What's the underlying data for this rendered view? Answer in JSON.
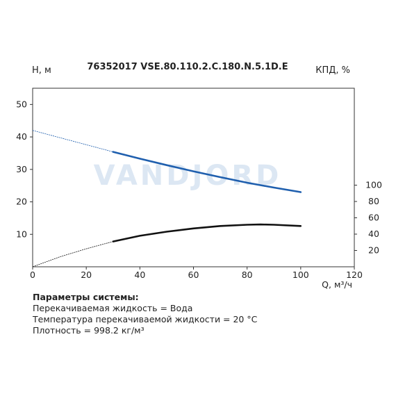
{
  "chart_data": {
    "type": "line",
    "title": "76352017 VSE.80.110.2.C.180.N.5.1D.E",
    "ylabel_left": "H, м",
    "ylabel_right": "КПД, %",
    "xlabel": "Q, м³/ч",
    "watermark": "VANDJORD",
    "xlim": [
      0,
      120
    ],
    "ylim_left": [
      0,
      55
    ],
    "xticks": [
      0,
      20,
      40,
      60,
      80,
      100,
      120
    ],
    "yticks_left": [
      10,
      20,
      30,
      40,
      50
    ],
    "yticks_right": [
      20,
      40,
      60,
      80,
      100
    ],
    "grid": false,
    "series": [
      {
        "key": "head",
        "axis": "left",
        "color": "#1f5fae",
        "x": [
          0,
          10,
          20,
          30,
          40,
          50,
          60,
          70,
          80,
          90,
          100
        ],
        "y": [
          42.0,
          39.8,
          37.6,
          35.4,
          33.3,
          31.3,
          29.4,
          27.6,
          25.9,
          24.4,
          23.0
        ]
      },
      {
        "key": "efficiency",
        "axis": "right",
        "color": "#111111",
        "x": [
          0,
          10,
          20,
          30,
          40,
          50,
          60,
          70,
          80,
          85,
          90,
          100
        ],
        "y": [
          0,
          12,
          22,
          31,
          38,
          43,
          47,
          50,
          51.5,
          51.8,
          51.5,
          50
        ]
      }
    ]
  },
  "params": {
    "header": "Параметры системы:",
    "line1": "Перекачиваемая жидкость = Вода",
    "line2": "Температура перекачиваемой жидкости = 20 °C",
    "line3": "Плотность = 998.2 кг/м³"
  }
}
